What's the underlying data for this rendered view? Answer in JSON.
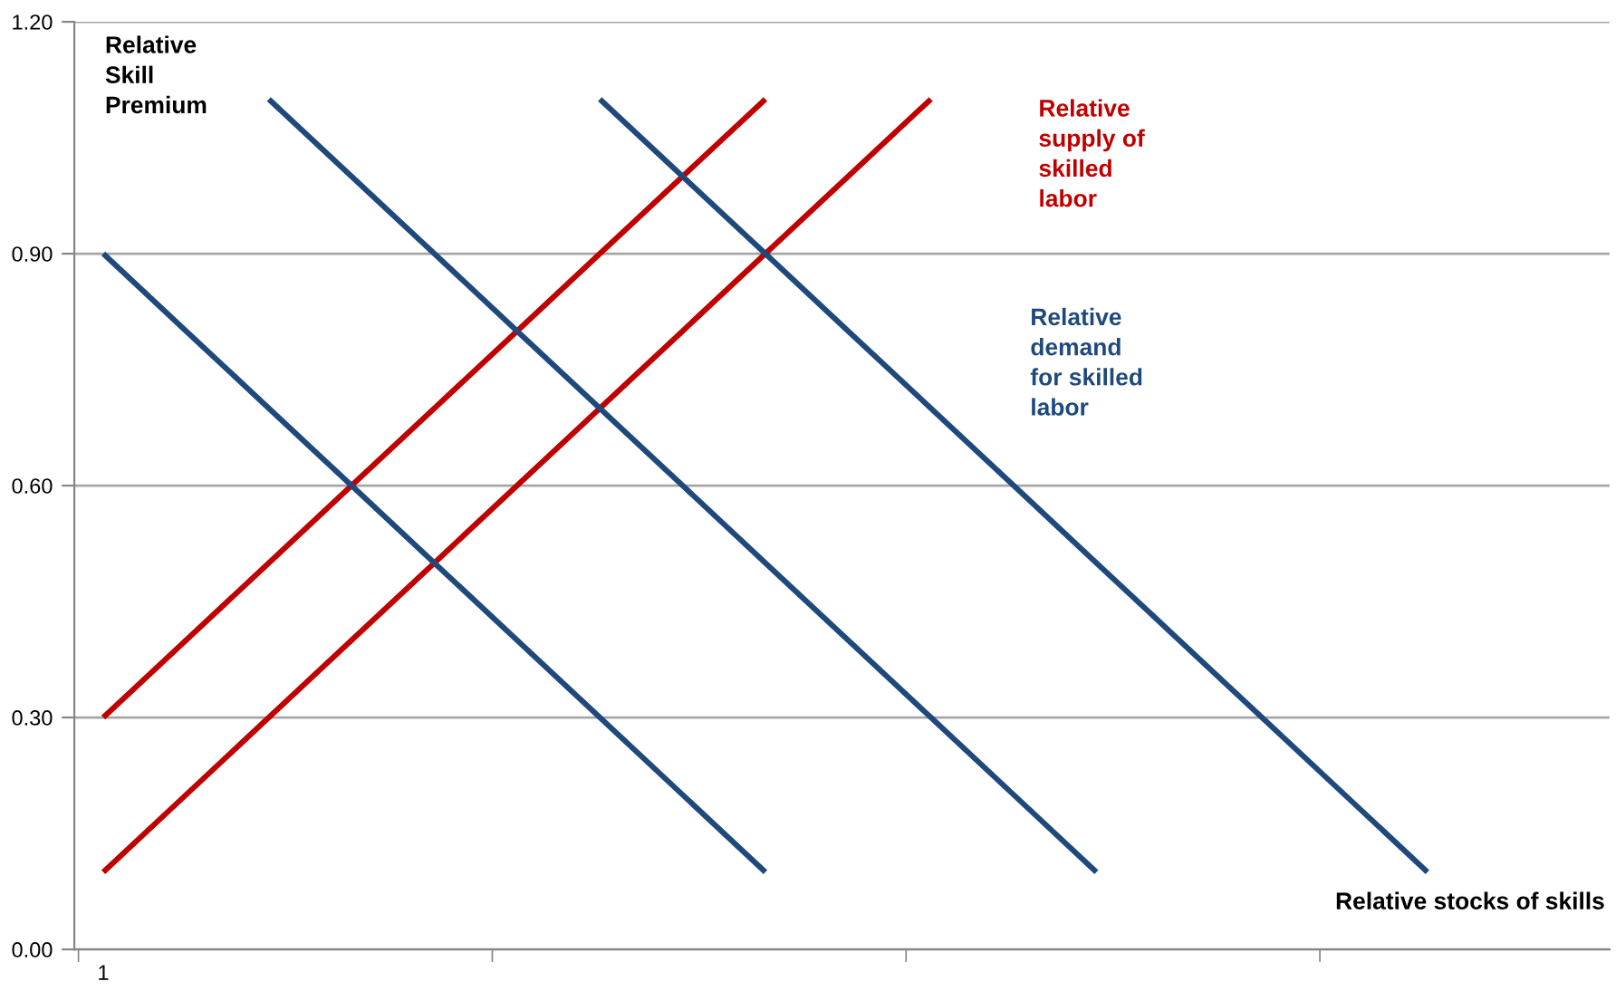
{
  "chart_data": {
    "type": "line",
    "ylabel": "Relative\nSkill\nPremium",
    "xlabel": "Relative stocks of skills",
    "categories": [
      "1",
      null,
      null,
      null,
      null,
      null,
      null,
      null,
      null,
      null,
      null,
      null,
      null,
      null,
      null,
      null,
      null,
      null,
      null
    ],
    "ylim": [
      0,
      1.2
    ],
    "yticks": [
      {
        "value": 0,
        "label": "0.00"
      },
      {
        "value": 0.3,
        "label": "0.30"
      },
      {
        "value": 0.6,
        "label": "0.60"
      },
      {
        "value": 0.9,
        "label": "0.90"
      },
      {
        "value": 1.2,
        "label": "1.20"
      }
    ],
    "grid": "y",
    "marker": "none",
    "line_style": "solid",
    "series": [
      {
        "color": "#c00000",
        "values": [
          0.3,
          0.4,
          0.5,
          0.6,
          0.7,
          0.8,
          0.9,
          1.0,
          1.1,
          null,
          null,
          null,
          null,
          null,
          null,
          null,
          null,
          null,
          null
        ]
      },
      {
        "name": "Relative\nsupply of\nskilled\nlabor",
        "color": "#c00000",
        "values": [
          0.1,
          0.2,
          0.3,
          0.4,
          0.5,
          0.6,
          0.7,
          0.8,
          0.9,
          1.0,
          1.1,
          null,
          null,
          null,
          null,
          null,
          null,
          null,
          null
        ]
      },
      {
        "color": "#1f497d",
        "values": [
          0.9,
          0.8,
          0.7,
          0.6,
          0.5,
          0.4,
          0.3,
          0.2,
          0.1,
          null,
          null,
          null,
          null,
          null,
          null,
          null,
          null,
          null,
          null
        ]
      },
      {
        "color": "#1f497d",
        "values": [
          null,
          null,
          1.1,
          1.0,
          0.9,
          0.8,
          0.7,
          0.6,
          0.5,
          0.4,
          0.3,
          0.2,
          0.1,
          null,
          null,
          null,
          null,
          null,
          null
        ]
      },
      {
        "name": "Relative\ndemand\nfor skilled\nlabor",
        "color": "#1f497d",
        "values": [
          null,
          null,
          null,
          null,
          null,
          null,
          1.1,
          1.0,
          0.9,
          0.8,
          0.7,
          0.6,
          0.5,
          0.4,
          0.3,
          0.2,
          0.1,
          null,
          null
        ]
      }
    ]
  }
}
